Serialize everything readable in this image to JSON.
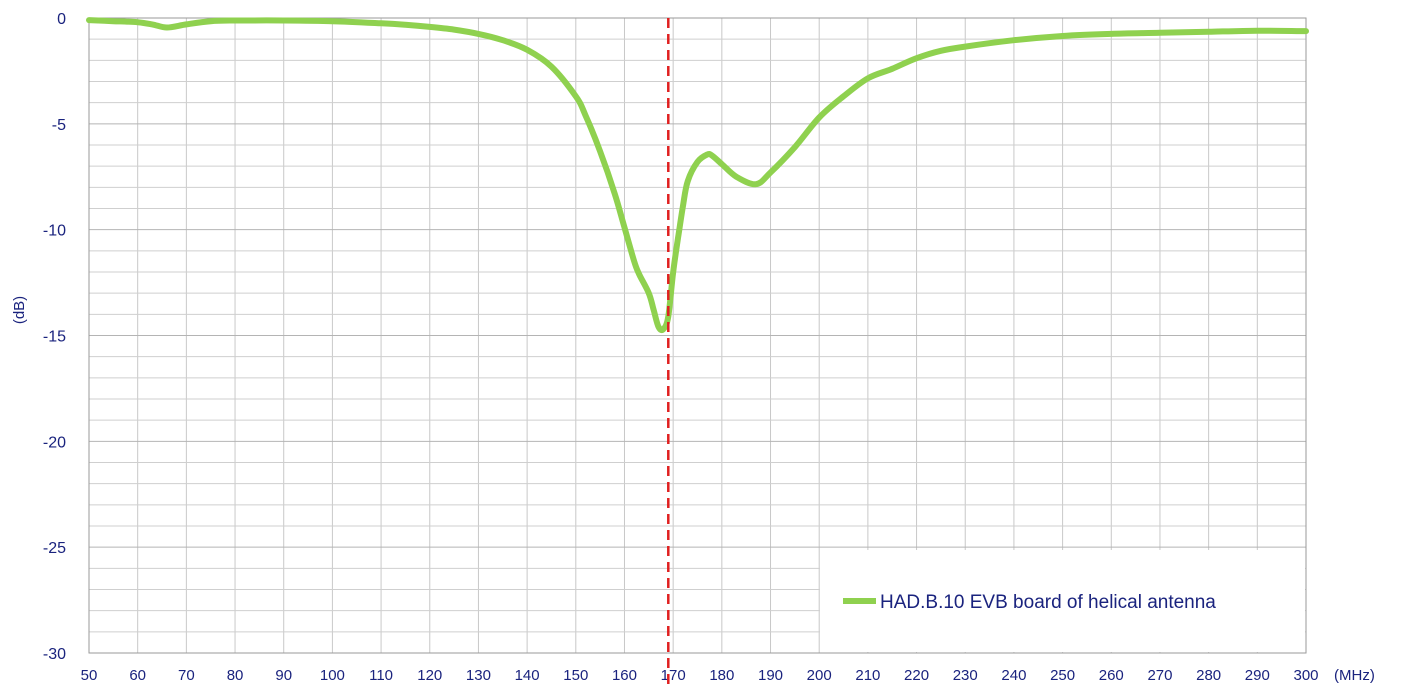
{
  "chart_data": {
    "type": "line",
    "title": "",
    "xlabel": "(MHz)",
    "ylabel": "(dB)",
    "xlim": [
      50,
      300
    ],
    "ylim": [
      -30,
      0
    ],
    "x_ticks": [
      50,
      60,
      70,
      80,
      90,
      100,
      110,
      120,
      130,
      140,
      150,
      160,
      170,
      180,
      190,
      200,
      210,
      220,
      230,
      240,
      250,
      260,
      270,
      280,
      290,
      300
    ],
    "y_ticks": [
      0,
      -5,
      -10,
      -15,
      -20,
      -25,
      -30
    ],
    "grid": true,
    "legend_position": "bottom-right",
    "marker_line": {
      "x": 169,
      "color": "#e02020",
      "style": "dashed"
    },
    "colors": {
      "series": "#8fd14f",
      "axis_text": "#1a237e",
      "grid": "#c8c8c8",
      "marker": "#e02020"
    },
    "series": [
      {
        "name": "HAD.B.10 EVB board of helical antenna",
        "x": [
          50,
          55,
          60,
          63,
          66,
          70,
          75,
          80,
          90,
          100,
          110,
          115,
          120,
          125,
          130,
          135,
          140,
          145,
          150,
          152,
          155,
          158,
          160,
          162,
          163,
          165,
          166,
          167,
          168,
          169,
          170,
          171,
          172,
          173,
          175,
          177,
          178,
          180,
          183,
          187,
          190,
          195,
          200,
          205,
          210,
          215,
          220,
          225,
          230,
          240,
          250,
          260,
          270,
          280,
          290,
          300
        ],
        "y": [
          -0.1,
          -0.15,
          -0.2,
          -0.3,
          -0.45,
          -0.3,
          -0.15,
          -0.12,
          -0.12,
          -0.15,
          -0.25,
          -0.32,
          -0.42,
          -0.55,
          -0.75,
          -1.05,
          -1.5,
          -2.3,
          -3.7,
          -4.6,
          -6.3,
          -8.3,
          -9.9,
          -11.5,
          -12.1,
          -13.0,
          -13.8,
          -14.6,
          -14.7,
          -14.1,
          -12.0,
          -10.4,
          -8.9,
          -7.7,
          -6.8,
          -6.45,
          -6.5,
          -6.9,
          -7.5,
          -7.85,
          -7.3,
          -6.1,
          -4.7,
          -3.7,
          -2.85,
          -2.4,
          -1.9,
          -1.55,
          -1.35,
          -1.05,
          -0.85,
          -0.75,
          -0.7,
          -0.65,
          -0.6,
          -0.62
        ]
      }
    ]
  }
}
